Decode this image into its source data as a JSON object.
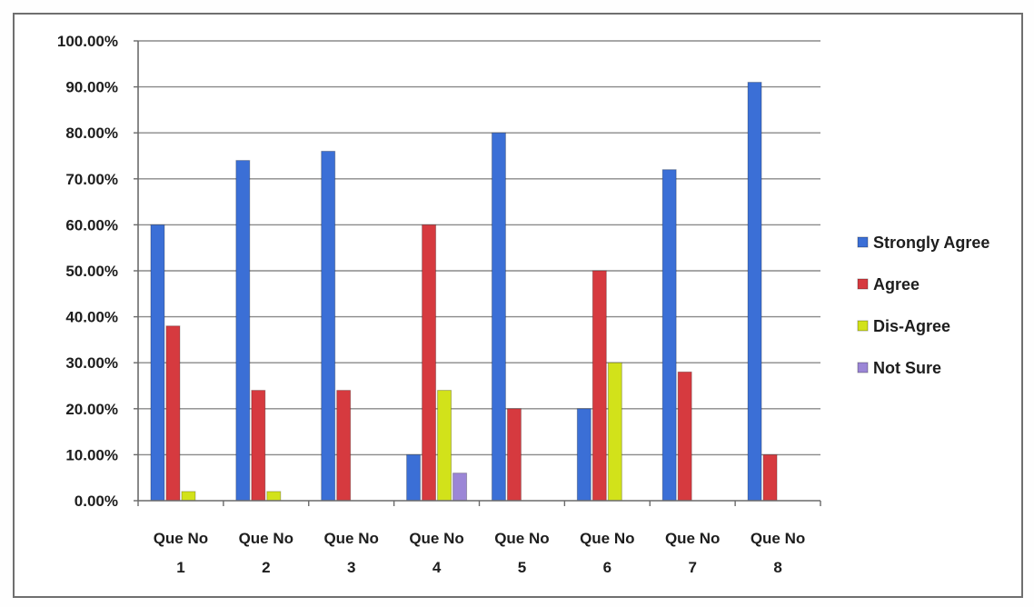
{
  "chart_data": {
    "type": "bar",
    "title": "",
    "xlabel": "",
    "ylabel": "",
    "ylim": [
      0,
      100
    ],
    "y_tick_step": 10,
    "y_tick_labels": [
      "0.00%",
      "10.00%",
      "20.00%",
      "30.00%",
      "40.00%",
      "50.00%",
      "60.00%",
      "70.00%",
      "80.00%",
      "90.00%",
      "100.00%"
    ],
    "grid": true,
    "legend_position": "right",
    "categories": [
      [
        "Que No",
        "1"
      ],
      [
        "Que No",
        "2"
      ],
      [
        "Que No",
        "3"
      ],
      [
        "Que No",
        "4"
      ],
      [
        "Que No",
        "5"
      ],
      [
        "Que No",
        "6"
      ],
      [
        "Que No",
        "7"
      ],
      [
        "Que No",
        "8"
      ]
    ],
    "series": [
      {
        "name": "Strongly Agree",
        "color": "#3b6fd6",
        "values": [
          60,
          74,
          76,
          10,
          80,
          20,
          72,
          91
        ]
      },
      {
        "name": "Agree",
        "color": "#d63a3f",
        "values": [
          38,
          24,
          24,
          60,
          20,
          50,
          28,
          10
        ]
      },
      {
        "name": "Dis-Agree",
        "color": "#d2e21a",
        "values": [
          2,
          2,
          0,
          24,
          0,
          30,
          0,
          0
        ]
      },
      {
        "name": "Not Sure",
        "color": "#9b86d6",
        "values": [
          0,
          0,
          0,
          6,
          0,
          0,
          0,
          0
        ]
      }
    ]
  }
}
